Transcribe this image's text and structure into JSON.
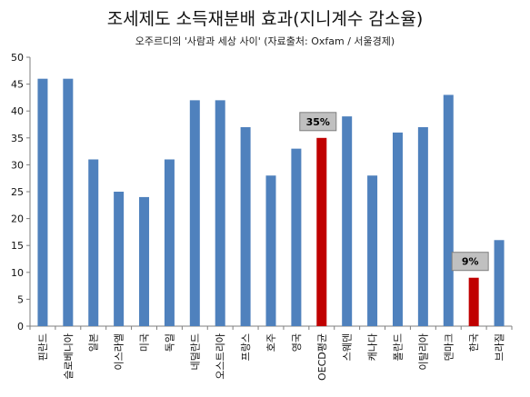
{
  "title": "조세제도 소득재분배 효과(지니계수 감소율)",
  "subtitle": "오주르디의 '사람과 세상 사이' (자료출처: Oxfam / 서울경제)",
  "colors": {
    "default": "#4f81bd",
    "highlight": "#c00000",
    "callout_fill": "#c0c0c0"
  },
  "chart_data": {
    "type": "bar",
    "categories": [
      "핀란드",
      "슬로베니아",
      "일본",
      "이스라엘",
      "미국",
      "독일",
      "네덜란드",
      "오스트리아",
      "프랑스",
      "호주",
      "영국",
      "OECD평균",
      "스웨덴",
      "캐나다",
      "폴란드",
      "이탈리아",
      "덴마크",
      "한국",
      "브라질"
    ],
    "values": [
      46,
      46,
      31,
      25,
      24,
      31,
      42,
      42,
      37,
      28,
      33,
      35,
      39,
      28,
      36,
      37,
      43,
      9,
      16
    ],
    "highlight": [
      "OECD평균",
      "한국"
    ],
    "ylim": [
      0,
      50
    ],
    "yticks": [
      0,
      5,
      10,
      15,
      20,
      25,
      30,
      35,
      40,
      45,
      50
    ],
    "grid": false,
    "legend": "none",
    "annotations": [
      {
        "category": "OECD평균",
        "text": "35%"
      },
      {
        "category": "한국",
        "text": "9%"
      }
    ]
  }
}
